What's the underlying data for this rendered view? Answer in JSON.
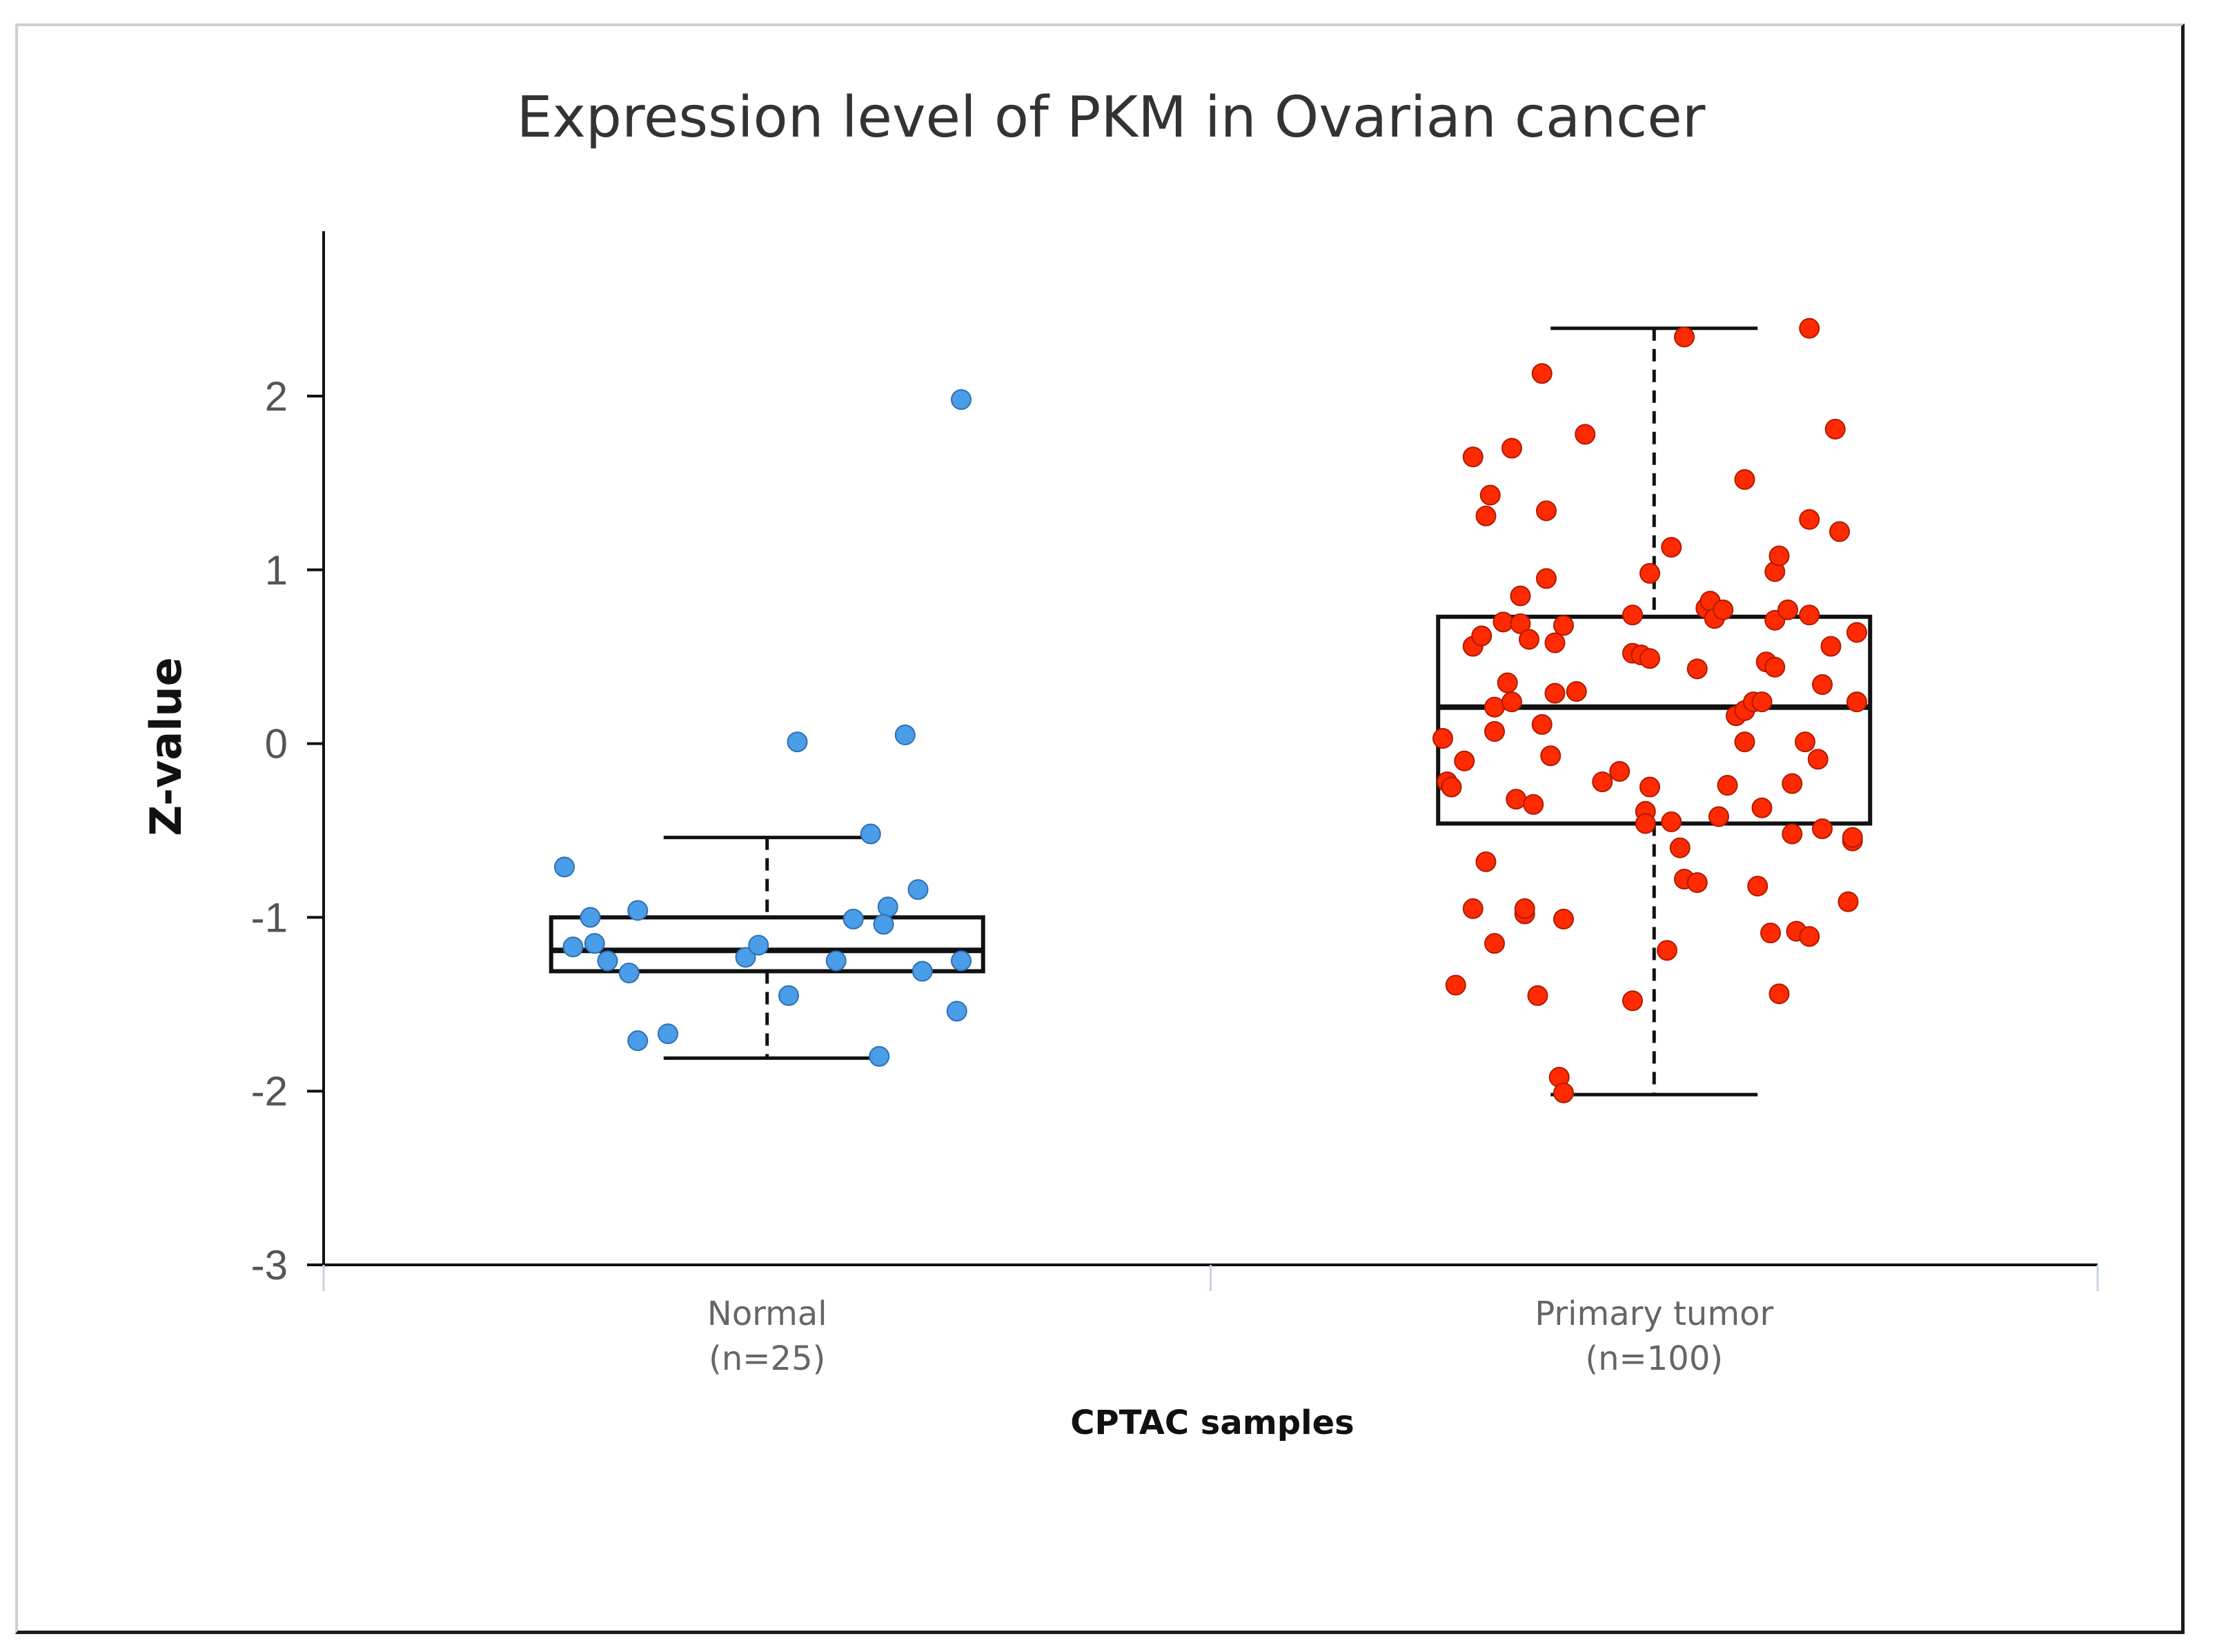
{
  "chart_data": {
    "type": "box",
    "title": "Expression level of PKM in Ovarian cancer",
    "xlabel": "CPTAC samples",
    "ylabel": "Z-value",
    "ylim": [
      -3,
      3
    ],
    "yticks": [
      -3,
      -2,
      -1,
      0,
      1,
      2
    ],
    "ytick_labels": [
      "-3",
      "-2",
      "-1",
      "0",
      "1",
      "2"
    ],
    "grid": false,
    "groups": [
      {
        "name": "Normal",
        "n_label": "(n=25)",
        "color": "#4a9de8",
        "stroke": "#2f6fb0",
        "box": {
          "whisker_low": -1.81,
          "q1": -1.31,
          "median": -1.19,
          "q3": -1.0,
          "whisker_high": -0.54
        },
        "points": [
          {
            "x": -0.45,
            "y": -1.17
          },
          {
            "x": -0.47,
            "y": -0.71
          },
          {
            "x": -0.4,
            "y": -1.15
          },
          {
            "x": -0.41,
            "y": -1.0
          },
          {
            "x": -0.37,
            "y": -1.25
          },
          {
            "x": -0.32,
            "y": -1.32
          },
          {
            "x": -0.3,
            "y": -0.96
          },
          {
            "x": -0.3,
            "y": -1.71
          },
          {
            "x": -0.23,
            "y": -1.67
          },
          {
            "x": -0.05,
            "y": -1.23
          },
          {
            "x": -0.02,
            "y": -1.16
          },
          {
            "x": 0.05,
            "y": -1.45
          },
          {
            "x": 0.07,
            "y": 0.01
          },
          {
            "x": 0.16,
            "y": -1.25
          },
          {
            "x": 0.2,
            "y": -1.01
          },
          {
            "x": 0.24,
            "y": -0.52
          },
          {
            "x": 0.26,
            "y": -1.8
          },
          {
            "x": 0.28,
            "y": -0.94
          },
          {
            "x": 0.27,
            "y": -1.04
          },
          {
            "x": 0.32,
            "y": 0.05
          },
          {
            "x": 0.35,
            "y": -0.84
          },
          {
            "x": 0.36,
            "y": -1.31
          },
          {
            "x": 0.44,
            "y": -1.54
          },
          {
            "x": 0.45,
            "y": -1.25
          },
          {
            "x": 0.45,
            "y": 1.98
          }
        ]
      },
      {
        "name": "Primary tumor",
        "n_label": "(n=100)",
        "color": "#ff2a00",
        "stroke": "#b01a00",
        "box": {
          "whisker_low": -2.02,
          "q1": -0.46,
          "median": 0.21,
          "q3": 0.73,
          "whisker_high": 2.39
        },
        "points": [
          {
            "x": -0.49,
            "y": 0.03
          },
          {
            "x": -0.48,
            "y": -0.22
          },
          {
            "x": -0.47,
            "y": -0.25
          },
          {
            "x": -0.46,
            "y": -1.39
          },
          {
            "x": -0.44,
            "y": -0.1
          },
          {
            "x": -0.42,
            "y": -0.95
          },
          {
            "x": -0.42,
            "y": 0.56
          },
          {
            "x": -0.42,
            "y": 1.65
          },
          {
            "x": -0.4,
            "y": 0.62
          },
          {
            "x": -0.39,
            "y": 1.31
          },
          {
            "x": -0.39,
            "y": -0.68
          },
          {
            "x": -0.38,
            "y": 1.43
          },
          {
            "x": -0.37,
            "y": 0.21
          },
          {
            "x": -0.37,
            "y": 0.07
          },
          {
            "x": -0.37,
            "y": -1.15
          },
          {
            "x": -0.35,
            "y": 0.7
          },
          {
            "x": -0.34,
            "y": 0.35
          },
          {
            "x": -0.33,
            "y": 0.24
          },
          {
            "x": -0.33,
            "y": 1.7
          },
          {
            "x": -0.32,
            "y": -0.32
          },
          {
            "x": -0.31,
            "y": 0.85
          },
          {
            "x": -0.31,
            "y": 0.69
          },
          {
            "x": -0.3,
            "y": -0.98
          },
          {
            "x": -0.3,
            "y": -0.95
          },
          {
            "x": -0.29,
            "y": 0.6
          },
          {
            "x": -0.28,
            "y": -0.35
          },
          {
            "x": -0.27,
            "y": -1.45
          },
          {
            "x": -0.26,
            "y": 0.11
          },
          {
            "x": -0.26,
            "y": 2.13
          },
          {
            "x": -0.25,
            "y": 1.34
          },
          {
            "x": -0.25,
            "y": 0.95
          },
          {
            "x": -0.24,
            "y": -0.07
          },
          {
            "x": -0.23,
            "y": 0.58
          },
          {
            "x": -0.23,
            "y": 0.29
          },
          {
            "x": -0.22,
            "y": -1.92
          },
          {
            "x": -0.21,
            "y": -2.01
          },
          {
            "x": -0.21,
            "y": -1.01
          },
          {
            "x": -0.21,
            "y": 0.68
          },
          {
            "x": -0.16,
            "y": 1.78
          },
          {
            "x": -0.12,
            "y": -0.22
          },
          {
            "x": -0.08,
            "y": -0.16
          },
          {
            "x": -0.05,
            "y": -1.48
          },
          {
            "x": -0.05,
            "y": 0.74
          },
          {
            "x": -0.05,
            "y": 0.52
          },
          {
            "x": -0.03,
            "y": 0.51
          },
          {
            "x": -0.02,
            "y": -0.39
          },
          {
            "x": -0.02,
            "y": -0.46
          },
          {
            "x": -0.01,
            "y": 0.49
          },
          {
            "x": -0.01,
            "y": 0.98
          },
          {
            "x": -0.01,
            "y": -0.25
          },
          {
            "x": 0.03,
            "y": -1.19
          },
          {
            "x": 0.04,
            "y": 1.13
          },
          {
            "x": 0.04,
            "y": -0.45
          },
          {
            "x": 0.07,
            "y": 2.34
          },
          {
            "x": 0.07,
            "y": -0.78
          },
          {
            "x": 0.1,
            "y": 0.43
          },
          {
            "x": 0.1,
            "y": -0.8
          },
          {
            "x": 0.12,
            "y": 0.78
          },
          {
            "x": 0.13,
            "y": 0.82
          },
          {
            "x": 0.14,
            "y": 0.72
          },
          {
            "x": 0.15,
            "y": -0.42
          },
          {
            "x": 0.16,
            "y": 0.77
          },
          {
            "x": 0.17,
            "y": -0.24
          },
          {
            "x": 0.19,
            "y": 0.16
          },
          {
            "x": 0.21,
            "y": 1.52
          },
          {
            "x": 0.21,
            "y": 0.19
          },
          {
            "x": 0.21,
            "y": 0.01
          },
          {
            "x": 0.23,
            "y": 0.24
          },
          {
            "x": 0.24,
            "y": -0.82
          },
          {
            "x": 0.25,
            "y": -0.37
          },
          {
            "x": 0.25,
            "y": 0.24
          },
          {
            "x": 0.26,
            "y": 0.47
          },
          {
            "x": 0.27,
            "y": -1.09
          },
          {
            "x": 0.28,
            "y": 0.44
          },
          {
            "x": 0.28,
            "y": 0.71
          },
          {
            "x": 0.28,
            "y": 0.99
          },
          {
            "x": 0.29,
            "y": -1.44
          },
          {
            "x": 0.29,
            "y": 1.08
          },
          {
            "x": 0.31,
            "y": 0.77
          },
          {
            "x": 0.32,
            "y": -0.52
          },
          {
            "x": 0.32,
            "y": -0.23
          },
          {
            "x": 0.33,
            "y": -1.08
          },
          {
            "x": 0.35,
            "y": 0.01
          },
          {
            "x": 0.36,
            "y": -1.11
          },
          {
            "x": 0.36,
            "y": 1.29
          },
          {
            "x": 0.36,
            "y": 0.74
          },
          {
            "x": 0.36,
            "y": 2.39
          },
          {
            "x": 0.38,
            "y": -0.09
          },
          {
            "x": 0.39,
            "y": 0.34
          },
          {
            "x": 0.39,
            "y": -0.49
          },
          {
            "x": 0.42,
            "y": 1.81
          },
          {
            "x": 0.43,
            "y": 1.22
          },
          {
            "x": 0.45,
            "y": -0.91
          },
          {
            "x": 0.46,
            "y": -0.56
          },
          {
            "x": 0.46,
            "y": -0.54
          },
          {
            "x": 0.47,
            "y": 0.24
          },
          {
            "x": 0.47,
            "y": 0.64
          },
          {
            "x": 0.41,
            "y": 0.56
          },
          {
            "x": -0.18,
            "y": 0.3
          },
          {
            "x": 0.06,
            "y": -0.6
          }
        ]
      }
    ]
  }
}
